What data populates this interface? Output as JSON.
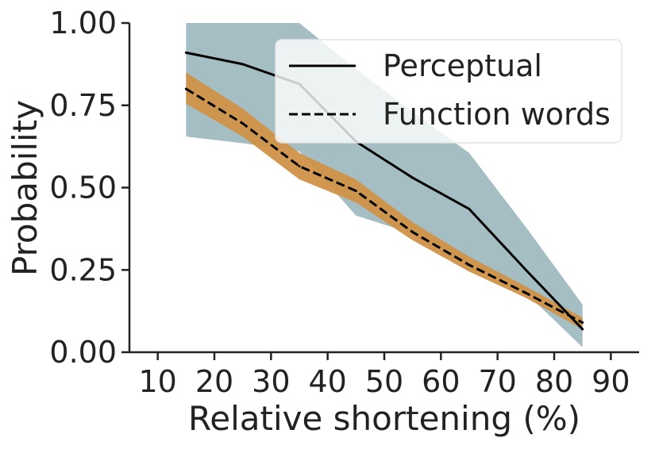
{
  "chart_data": {
    "type": "line",
    "title": "",
    "xlabel": "Relative shortening (%)",
    "ylabel": "Probability",
    "xlim": [
      5,
      95
    ],
    "ylim": [
      0,
      1
    ],
    "xticks": [
      10,
      20,
      30,
      40,
      50,
      60,
      70,
      80,
      90
    ],
    "yticks": [
      0,
      0.25,
      0.5,
      0.75,
      1
    ],
    "ytick_labels": [
      "0.00",
      "0.25",
      "0.50",
      "0.75",
      "1.00"
    ],
    "grid": false,
    "legend_position": "top-right",
    "series": [
      {
        "name": "Perceptual",
        "style": "solid",
        "color": "#000000",
        "band_color": "#a5bec4",
        "x": [
          15,
          25,
          35,
          45,
          55,
          65,
          75,
          85
        ],
        "y": [
          0.91,
          0.875,
          0.815,
          0.64,
          0.53,
          0.435,
          0.25,
          0.07
        ],
        "lower": [
          0.655,
          0.635,
          0.61,
          0.415,
          0.36,
          0.26,
          0.18,
          0.015
        ],
        "upper": [
          1.0,
          1.0,
          1.0,
          0.86,
          0.73,
          0.605,
          0.38,
          0.145
        ]
      },
      {
        "name": "Function words",
        "style": "dashed",
        "color": "#000000",
        "band_color": "#d09248",
        "x": [
          15,
          25,
          35,
          45,
          55,
          65,
          75,
          85
        ],
        "y": [
          0.8,
          0.695,
          0.565,
          0.49,
          0.365,
          0.265,
          0.18,
          0.09
        ],
        "lower": [
          0.755,
          0.655,
          0.525,
          0.455,
          0.34,
          0.245,
          0.165,
          0.07
        ],
        "upper": [
          0.85,
          0.74,
          0.605,
          0.525,
          0.395,
          0.29,
          0.2,
          0.105
        ]
      }
    ]
  }
}
